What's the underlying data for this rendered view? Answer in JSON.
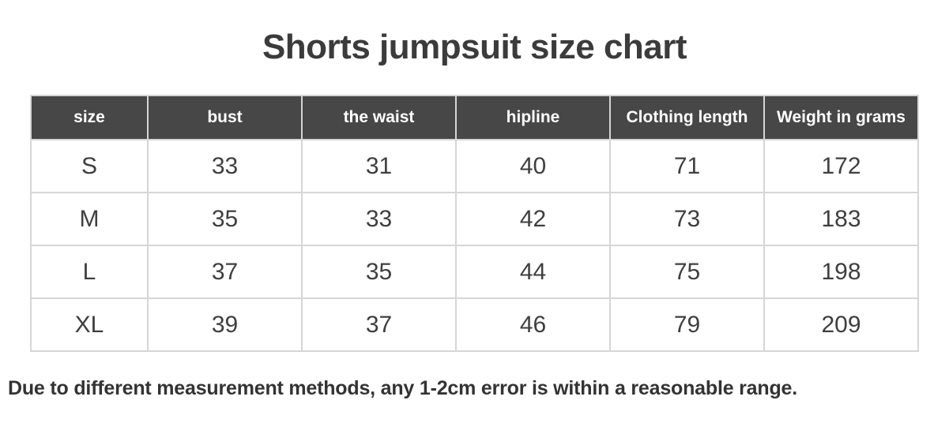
{
  "page": {
    "title": "Shorts jumpsuit size chart",
    "footnote": "Due to different measurement methods, any 1-2cm error is within a reasonable range."
  },
  "colors": {
    "header_bg": "#474747",
    "header_text": "#ffffff",
    "body_text": "#3f3f3f",
    "grid_line": "#d6d6d6",
    "title_text": "#3b3b3b"
  },
  "chart_data": {
    "type": "table",
    "title": "Shorts jumpsuit size chart",
    "columns": [
      "size",
      "bust",
      "the waist",
      "hipline",
      "Clothing length",
      "Weight in grams"
    ],
    "rows": [
      [
        "S",
        "33",
        "31",
        "40",
        "71",
        "172"
      ],
      [
        "M",
        "35",
        "33",
        "42",
        "73",
        "183"
      ],
      [
        "L",
        "37",
        "35",
        "44",
        "75",
        "198"
      ],
      [
        "XL",
        "39",
        "37",
        "46",
        "79",
        "209"
      ]
    ],
    "note": "Due to different measurement methods, any 1-2cm error is within a reasonable range."
  }
}
